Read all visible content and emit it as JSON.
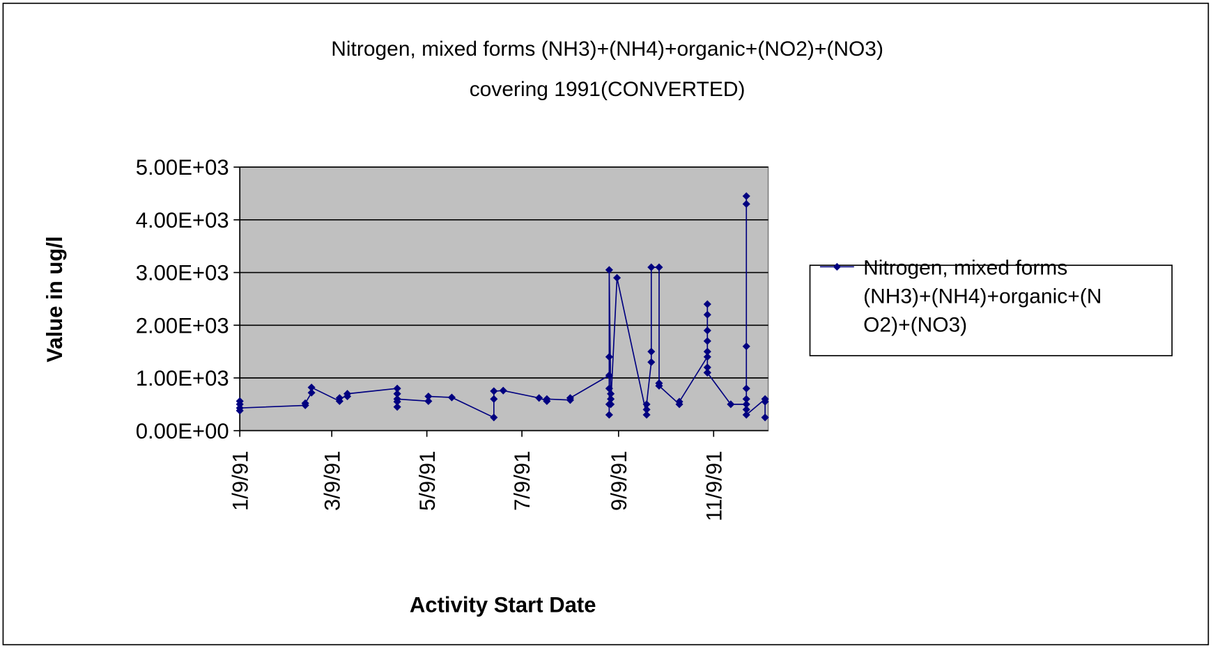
{
  "chart_data": {
    "type": "line",
    "title": [
      "Nitrogen, mixed forms (NH3)+(NH4)+organic+(NO2)+(NO3)",
      "covering 1991(CONVERTED)"
    ],
    "xlabel": "Activity Start Date",
    "ylabel": "Value in ug/l",
    "xlim": [
      "1991-01-09",
      "1991-12-14"
    ],
    "xticks": [
      {
        "value": "1991-01-09",
        "label": "1/9/91"
      },
      {
        "value": "1991-03-09",
        "label": "3/9/91"
      },
      {
        "value": "1991-05-09",
        "label": "5/9/91"
      },
      {
        "value": "1991-07-09",
        "label": "7/9/91"
      },
      {
        "value": "1991-09-09",
        "label": "9/9/91"
      },
      {
        "value": "1991-11-09",
        "label": "11/9/91"
      }
    ],
    "ylim": [
      0,
      5000
    ],
    "yticks": [
      {
        "value": 0,
        "label": "0.00E+00"
      },
      {
        "value": 1000,
        "label": "1.00E+03"
      },
      {
        "value": 2000,
        "label": "2.00E+03"
      },
      {
        "value": 3000,
        "label": "3.00E+03"
      },
      {
        "value": 4000,
        "label": "4.00E+03"
      },
      {
        "value": 5000,
        "label": "5.00E+03"
      }
    ],
    "grid": true,
    "legend": "right",
    "series": [
      {
        "name": "Nitrogen, mixed forms (NH3)+(NH4)+organic+(NO2)+(NO3)",
        "color": "#000080",
        "x": [
          "1991-01-09",
          "1991-01-09",
          "1991-01-09",
          "1991-01-09",
          "1991-02-20",
          "1991-02-20",
          "1991-02-24",
          "1991-02-24",
          "1991-03-14",
          "1991-03-14",
          "1991-03-19",
          "1991-03-19",
          "1991-04-20",
          "1991-04-20",
          "1991-04-20",
          "1991-04-20",
          "1991-04-20",
          "1991-05-10",
          "1991-05-10",
          "1991-05-25",
          "1991-06-21",
          "1991-06-21",
          "1991-06-21",
          "1991-06-27",
          "1991-07-20",
          "1991-07-25",
          "1991-07-25",
          "1991-08-09",
          "1991-08-09",
          "1991-09-03",
          "1991-09-03",
          "1991-09-03",
          "1991-09-03",
          "1991-09-03",
          "1991-09-03",
          "1991-09-04",
          "1991-09-04",
          "1991-09-04",
          "1991-09-08",
          "1991-09-27",
          "1991-09-27",
          "1991-09-27",
          "1991-09-30",
          "1991-09-30",
          "1991-09-30",
          "1991-10-05",
          "1991-10-05",
          "1991-10-05",
          "1991-10-18",
          "1991-10-18",
          "1991-11-05",
          "1991-11-05",
          "1991-11-05",
          "1991-11-05",
          "1991-11-05",
          "1991-11-05",
          "1991-11-05",
          "1991-11-05",
          "1991-11-05",
          "1991-11-20",
          "1991-11-30",
          "1991-11-30",
          "1991-11-30",
          "1991-11-30",
          "1991-11-30",
          "1991-11-30",
          "1991-11-30",
          "1991-11-30",
          "1991-12-12",
          "1991-12-12",
          "1991-12-12"
        ],
        "values": [
          380,
          560,
          500,
          430,
          480,
          520,
          720,
          820,
          560,
          620,
          650,
          700,
          800,
          450,
          550,
          700,
          600,
          560,
          650,
          630,
          250,
          600,
          750,
          760,
          620,
          560,
          600,
          580,
          620,
          1050,
          1400,
          300,
          500,
          800,
          3050,
          600,
          700,
          500,
          2900,
          300,
          400,
          500,
          1300,
          1500,
          3100,
          3100,
          900,
          850,
          500,
          550,
          1400,
          1100,
          1200,
          1700,
          1900,
          2200,
          2400,
          1500,
          1100,
          500,
          500,
          4450,
          4300,
          1600,
          800,
          600,
          400,
          300,
          600,
          250,
          550
        ]
      }
    ]
  }
}
